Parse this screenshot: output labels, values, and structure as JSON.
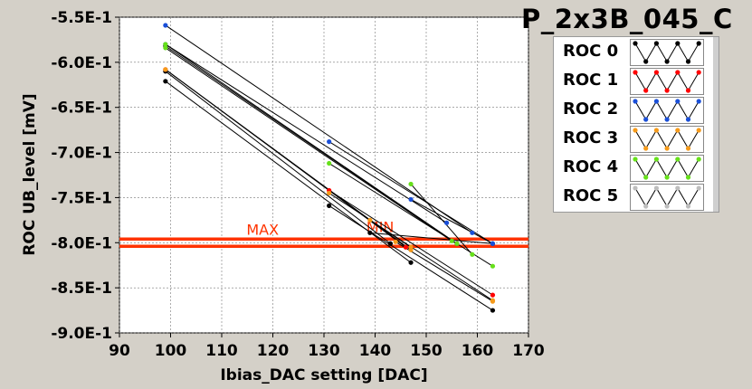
{
  "title": "P_2x3B_045_C",
  "chart_data": {
    "type": "line",
    "xlabel": "Ibias_DAC setting [DAC]",
    "ylabel": "ROC UB_level [mV]",
    "xlim": [
      90,
      170
    ],
    "ylim": [
      -0.9,
      -0.55
    ],
    "x_ticks": [
      90,
      100,
      110,
      120,
      130,
      140,
      150,
      160,
      170
    ],
    "y_ticks": [
      -0.55,
      -0.6,
      -0.65,
      -0.7,
      -0.75,
      -0.8,
      -0.85,
      -0.9
    ],
    "x_tick_labels": [
      "90",
      "100",
      "110",
      "120",
      "130",
      "140",
      "150",
      "160",
      "170"
    ],
    "y_tick_labels": [
      "-5.5E-1",
      "-6.0E-1",
      "-6.5E-1",
      "-7.0E-1",
      "-7.5E-1",
      "-8.0E-1",
      "-8.5E-1",
      "-9.0E-1"
    ],
    "grid": true,
    "legend_position": "right",
    "hlines": [
      {
        "label": "MAX",
        "y": -0.796,
        "color": "#ff3300"
      },
      {
        "label": "MIN",
        "y": -0.804,
        "color": "#ff3300"
      }
    ],
    "series": [
      {
        "name": "ROC 0",
        "color": "#000000",
        "segments": [
          [
            [
              99,
              -0.621
            ],
            [
              147,
              -0.822
            ]
          ],
          [
            [
              131,
              -0.759
            ],
            [
              163,
              -0.875
            ]
          ],
          [
            [
              99,
              -0.61
            ],
            [
              143,
              -0.801
            ]
          ],
          [
            [
              139,
              -0.789
            ],
            [
              163,
              -0.801
            ]
          ],
          [
            [
              99,
              -0.582
            ],
            [
              156,
              -0.801
            ]
          ]
        ]
      },
      {
        "name": "ROC 1",
        "color": "#ff0000",
        "segments": [
          [
            [
              99,
              -0.608
            ],
            [
              146,
              -0.805
            ]
          ],
          [
            [
              131,
              -0.742
            ],
            [
              163,
              -0.858
            ]
          ]
        ]
      },
      {
        "name": "ROC 2",
        "color": "#1a4fd8",
        "segments": [
          [
            [
              99,
              -0.559
            ],
            [
              159,
              -0.789
            ]
          ],
          [
            [
              131,
              -0.688
            ],
            [
              163,
              -0.801
            ]
          ],
          [
            [
              147,
              -0.752
            ],
            [
              163,
              -0.801
            ]
          ],
          [
            [
              99,
              -0.58
            ],
            [
              154,
              -0.778
            ]
          ]
        ]
      },
      {
        "name": "ROC 3",
        "color": "#f59a1a",
        "segments": [
          [
            [
              99,
              -0.608
            ],
            [
              147,
              -0.808
            ]
          ],
          [
            [
              131,
              -0.745
            ],
            [
              163,
              -0.864
            ]
          ],
          [
            [
              139,
              -0.775
            ],
            [
              147,
              -0.805
            ]
          ],
          [
            [
              144,
              -0.799
            ],
            [
              163,
              -0.865
            ]
          ]
        ]
      },
      {
        "name": "ROC 4",
        "color": "#66e01a",
        "segments": [
          [
            [
              99,
              -0.58
            ],
            [
              156,
              -0.801
            ]
          ],
          [
            [
              131,
              -0.712
            ],
            [
              163,
              -0.826
            ]
          ],
          [
            [
              147,
              -0.735
            ],
            [
              159,
              -0.813
            ]
          ],
          [
            [
              99,
              -0.584
            ],
            [
              155,
              -0.798
            ]
          ]
        ]
      },
      {
        "name": "ROC 5",
        "color": "#bdbdbd",
        "segments": []
      }
    ]
  }
}
